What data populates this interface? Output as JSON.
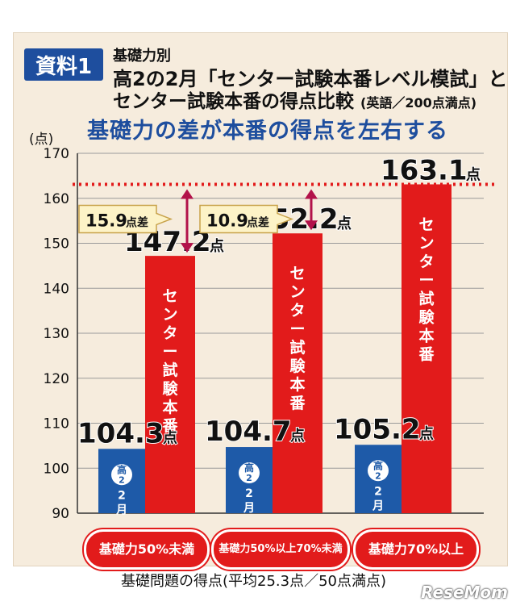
{
  "header": {
    "badge": "資料1",
    "line1": "基礎力別",
    "line2": "高2の2月「センター試験本番レベル模試」と",
    "line3_main": "センター試験本番の得点比較",
    "line3_note": "(英語／200点満点)"
  },
  "subtitle": "基礎力の差が本番の得点を左右する",
  "logo": "ReseMom",
  "colors": {
    "blue": "#1e5aa8",
    "red": "#e21b1b",
    "background": "#f6ecdd"
  },
  "chart_data": {
    "type": "bar",
    "yunit": "(点)",
    "ylim": [
      90,
      170
    ],
    "yticks": [
      90,
      100,
      110,
      120,
      130,
      140,
      150,
      160,
      170
    ],
    "grid": true,
    "xlabel": "基礎問題の得点(平均25.3点／50点満点)",
    "categories": [
      "基礎力50%未満",
      "基礎力50%以上 70%未満",
      "基礎力70%以上"
    ],
    "category_lines": [
      [
        "基礎力50%未満"
      ],
      [
        "基礎力50%以上",
        "70%未満"
      ],
      [
        "基礎力70%以上"
      ]
    ],
    "series": [
      {
        "name": "高2 2月",
        "values": [
          104.3,
          104.7,
          105.2
        ],
        "labels": [
          "104.3",
          "104.7",
          "105.2"
        ],
        "color": "#1e5aa8"
      },
      {
        "name": "センター試験本番",
        "values": [
          147.2,
          152.2,
          163.1
        ],
        "labels": [
          "147.2",
          "152.2",
          "163.1"
        ],
        "color": "#e21b1b"
      }
    ],
    "value_suffix": "点",
    "bar_texts": {
      "blue_top": "高2",
      "blue_bottom": "2月",
      "red": "センター試験本番"
    },
    "reference_line": 163.1,
    "differences": [
      {
        "label": "15.9",
        "suffix": "点差",
        "from": 147.2,
        "to": 163.1
      },
      {
        "label": "10.9",
        "suffix": "点差",
        "from": 152.2,
        "to": 163.1
      }
    ]
  }
}
